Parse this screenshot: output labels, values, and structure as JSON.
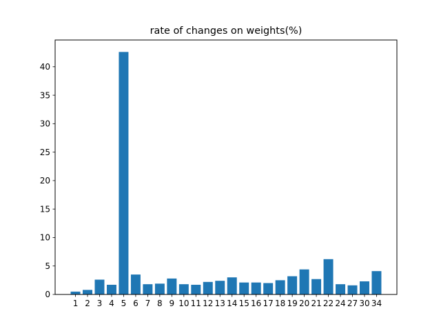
{
  "chart_data": {
    "type": "bar",
    "title": "rate of changes on weights(%)",
    "xlabel": "",
    "ylabel": "",
    "categories": [
      "1",
      "2",
      "3",
      "4",
      "5",
      "6",
      "7",
      "8",
      "9",
      "10",
      "11",
      "12",
      "13",
      "14",
      "15",
      "16",
      "17",
      "18",
      "19",
      "20",
      "21",
      "22",
      "24",
      "27",
      "30",
      "34"
    ],
    "values": [
      0.5,
      0.8,
      2.6,
      1.7,
      42.6,
      3.5,
      1.8,
      1.9,
      2.8,
      1.8,
      1.7,
      2.2,
      2.4,
      3.0,
      2.1,
      2.1,
      2.0,
      2.5,
      3.2,
      4.4,
      2.7,
      6.2,
      1.8,
      1.6,
      2.3,
      4.1
    ],
    "ylim": [
      0,
      44.7
    ],
    "yticks": [
      0,
      5,
      10,
      15,
      20,
      25,
      30,
      35,
      40
    ],
    "grid": false,
    "bar_color": "#1f77b4"
  }
}
